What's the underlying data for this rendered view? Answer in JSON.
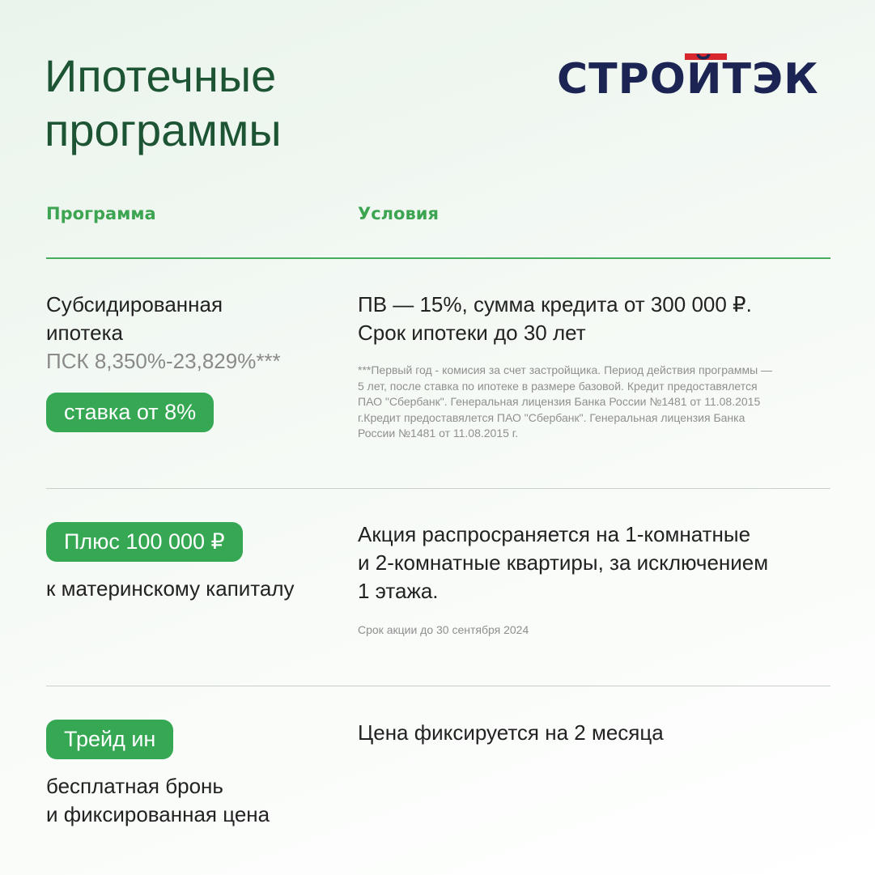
{
  "header": {
    "title_lines": [
      "Ипотечные",
      "программы"
    ],
    "logo": "СТРОЙТЭК"
  },
  "table": {
    "columns": [
      "Программа",
      "Условия"
    ],
    "rows": [
      {
        "program_lines": [
          "Субсидированная",
          "ипотека"
        ],
        "psk": "ПСК 8,350%-23,829%***",
        "badge": "ставка от 8%",
        "conditions_lines": [
          "ПВ — 15%, сумма кредита от 300 000 ₽.",
          "Срок ипотеки до 30 лет"
        ],
        "note_lines": [
          "***Первый год - комисия за счет застройщика. Период действия программы —",
          "5 лет, после ставка по ипотеке в размере базовой. Кредит предоставялется",
          "ПАО \"Сбербанк\". Генеральная лицензия Банка России №1481 от 11.08.2015",
          "г.Кредит предоставялется ПАО \"Сбербанк\". Генеральная лицензия Банка",
          "России №1481 от 11.08.2015 г."
        ]
      },
      {
        "badge": "Плюс 100 000 ₽",
        "program_lines": [
          "к материнскому капиталу"
        ],
        "conditions_lines": [
          "Акция распросраняется на 1-комнатные",
          "и 2-комнатные квартиры, за исключением",
          "1 этажа."
        ],
        "note_lines": [
          "Срок акции до 30 сентября 2024"
        ]
      },
      {
        "badge": "Трейд ин",
        "program_lines": [
          "бесплатная бронь",
          "и фиксированная цена"
        ],
        "conditions_lines": [
          "Цена фиксируется на 2 месяца"
        ]
      }
    ]
  }
}
